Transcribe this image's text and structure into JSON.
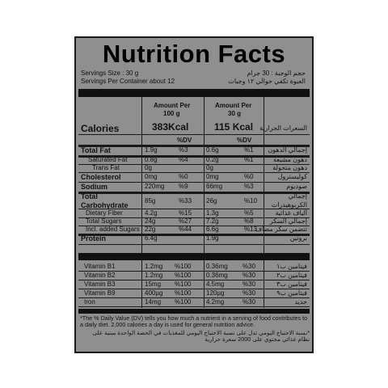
{
  "title": "Nutrition Facts",
  "serving": {
    "size_en": "Servings Size : 30 g",
    "per_container_en": "Servings Per Container about 12",
    "size_ar": "حجم الوجبة : 30 جرام",
    "per_container_ar": "العبوة تكفي حوالي ١٢ وجبات"
  },
  "header": {
    "col1_line1": "Amount Per",
    "col1_line2": "100 g",
    "col2_line1": "Amount Per",
    "col2_line2": "30 g",
    "calories_en": "Calories",
    "calories_100g": "383Kcal",
    "calories_30g": "115 Kcal",
    "calories_ar": "السعرات الحرارية",
    "dv1": "%DV",
    "dv2": "%DV"
  },
  "rows": [
    {
      "name": "Total Fat",
      "v1": "1.9g",
      "p1": "%3",
      "v2": "0.6g",
      "p2": "%1",
      "ar": "إجمالي الدهون"
    },
    {
      "name": "Saturated Fat",
      "v1": "0.8g",
      "p1": "%4",
      "v2": "0.2g",
      "p2": "%1",
      "ar": "دهون مشبعة"
    },
    {
      "name": "Trans Fat",
      "v1": "0g",
      "p1": "",
      "v2": "0g",
      "p2": "",
      "ar": "دهون متحولة"
    },
    {
      "name": "Cholesterol",
      "v1": "0mg",
      "p1": "%0",
      "v2": "0mg",
      "p2": "%0",
      "ar": "كوليسترول"
    },
    {
      "name": "Sodium",
      "v1": "220mg",
      "p1": "%9",
      "v2": "66mg",
      "p2": "%3",
      "ar": "صوديوم"
    },
    {
      "name": "Total",
      "name2": "Carbohydrate",
      "v1": "85g",
      "p1": "%33",
      "v2": "26g",
      "p2": "%10",
      "ar": "إجمالي",
      "ar2": "الكربوهيدرات"
    },
    {
      "name": "Dietary Fiber",
      "v1": "4.2g",
      "p1": "%15",
      "v2": "1.3g",
      "p2": "%5",
      "ar": "ألياف غذائية"
    },
    {
      "name": "Total Sugars",
      "v1": "24g",
      "p1": "%27",
      "v2": "7.2g",
      "p2": "%8",
      "ar": "إجمالي السكر"
    },
    {
      "name": "Incl. added Sugars",
      "v1": "22g",
      "p1": "%44",
      "v2": "6.6g",
      "p2": "%13",
      "ar": "تتضمن سكر مضاف"
    },
    {
      "name": "Protein",
      "v1": "6.4g",
      "p1": "",
      "v2": "1.9g",
      "p2": "",
      "ar": "بروتين"
    }
  ],
  "vitamins": [
    {
      "name": "Vitamin B1",
      "v1": "1.2mg",
      "p1": "%100",
      "v2": "0.36mg",
      "p2": "%30",
      "ar": "فيتامين ب١"
    },
    {
      "name": "Vitamin B2",
      "v1": "1.2mg",
      "p1": "%100",
      "v2": "0.36mg",
      "p2": "%30",
      "ar": "فيتامين ب٢"
    },
    {
      "name": "Vitamin B3",
      "v1": "15mg",
      "p1": "%100",
      "v2": "4.5mg",
      "p2": "%30",
      "ar": "فيتامين ب٣"
    },
    {
      "name": "Vitamin B9",
      "v1": "400µg",
      "p1": "%100",
      "v2": "120µg",
      "p2": "%30",
      "ar": "فيتامين ب٩"
    },
    {
      "name": "Iron",
      "v1": "14mg",
      "p1": "%100",
      "v2": "4.2mg",
      "p2": "%30",
      "ar": "حديد"
    }
  ],
  "footnote_en": "*The % Daily Value (DV) tells you how much a nutrient in a serving of food contributes to a daily diet. 2,000 calories a day is used for general nutrition advice.",
  "footnote_ar": "*نسبة الاحتياج اليومي تدل على نسبة الاحتياج اليومي للمغذيات في الحصة الواحدة مبنية على نظام غذائي محتوي على 2000 سعرة حرارية",
  "colors": {
    "label_bg": "#8f8f8f",
    "ink": "#111111"
  }
}
